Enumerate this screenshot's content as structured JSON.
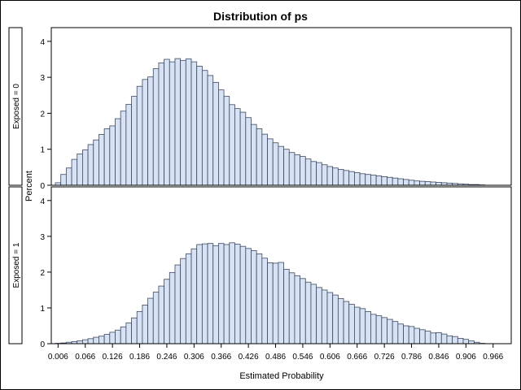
{
  "chart_data": {
    "type": "bar",
    "title": "Distribution of ps",
    "xlabel": "Estimated Probability",
    "ylabel": "Percent",
    "x_tick_labels": [
      "0.006",
      "0.066",
      "0.126",
      "0.186",
      "0.246",
      "0.306",
      "0.366",
      "0.426",
      "0.486",
      "0.546",
      "0.606",
      "0.666",
      "0.726",
      "0.786",
      "0.846",
      "0.906",
      "0.966"
    ],
    "x_tick_values": [
      0.006,
      0.066,
      0.126,
      0.186,
      0.246,
      0.306,
      0.366,
      0.426,
      0.486,
      0.546,
      0.606,
      0.666,
      0.726,
      0.786,
      0.846,
      0.906,
      0.966
    ],
    "xlim": [
      -0.009,
      1.006
    ],
    "bin_start": 0.006,
    "bin_width": 0.012,
    "ylim": [
      0,
      4.2
    ],
    "y_tick_labels": [
      "0",
      "1",
      "2",
      "3",
      "4"
    ],
    "y_ticks": [
      0,
      1,
      2,
      3,
      4
    ],
    "panels": [
      {
        "label": "Exposed = 0",
        "values": [
          0.07,
          0.3,
          0.48,
          0.72,
          0.87,
          0.98,
          1.13,
          1.26,
          1.41,
          1.57,
          1.65,
          1.85,
          2.06,
          2.25,
          2.47,
          2.75,
          2.94,
          3.01,
          3.24,
          3.4,
          3.5,
          3.43,
          3.52,
          3.47,
          3.51,
          3.43,
          3.31,
          3.19,
          3.05,
          2.86,
          2.65,
          2.47,
          2.24,
          2.13,
          2.03,
          1.88,
          1.69,
          1.57,
          1.42,
          1.29,
          1.18,
          1.08,
          1.0,
          0.91,
          0.85,
          0.8,
          0.73,
          0.66,
          0.63,
          0.57,
          0.52,
          0.48,
          0.44,
          0.41,
          0.38,
          0.35,
          0.32,
          0.3,
          0.28,
          0.26,
          0.24,
          0.22,
          0.2,
          0.18,
          0.16,
          0.14,
          0.12,
          0.11,
          0.1,
          0.09,
          0.08,
          0.07,
          0.06,
          0.05,
          0.04,
          0.03,
          0.02,
          0.02,
          0.01
        ]
      },
      {
        "label": "Exposed = 1",
        "values": [
          0.01,
          0.02,
          0.04,
          0.06,
          0.08,
          0.11,
          0.14,
          0.18,
          0.21,
          0.26,
          0.32,
          0.38,
          0.47,
          0.58,
          0.72,
          0.9,
          1.08,
          1.27,
          1.44,
          1.61,
          1.8,
          1.99,
          2.2,
          2.38,
          2.51,
          2.65,
          2.77,
          2.79,
          2.8,
          2.74,
          2.8,
          2.77,
          2.82,
          2.78,
          2.72,
          2.66,
          2.6,
          2.51,
          2.39,
          2.26,
          2.25,
          2.27,
          2.08,
          1.98,
          1.9,
          1.82,
          1.72,
          1.66,
          1.57,
          1.5,
          1.43,
          1.36,
          1.26,
          1.18,
          1.1,
          1.02,
          0.98,
          0.9,
          0.82,
          0.78,
          0.73,
          0.68,
          0.62,
          0.55,
          0.5,
          0.48,
          0.43,
          0.39,
          0.35,
          0.3,
          0.31,
          0.27,
          0.22,
          0.2,
          0.15,
          0.12,
          0.08,
          0.04,
          0.01
        ]
      }
    ]
  }
}
